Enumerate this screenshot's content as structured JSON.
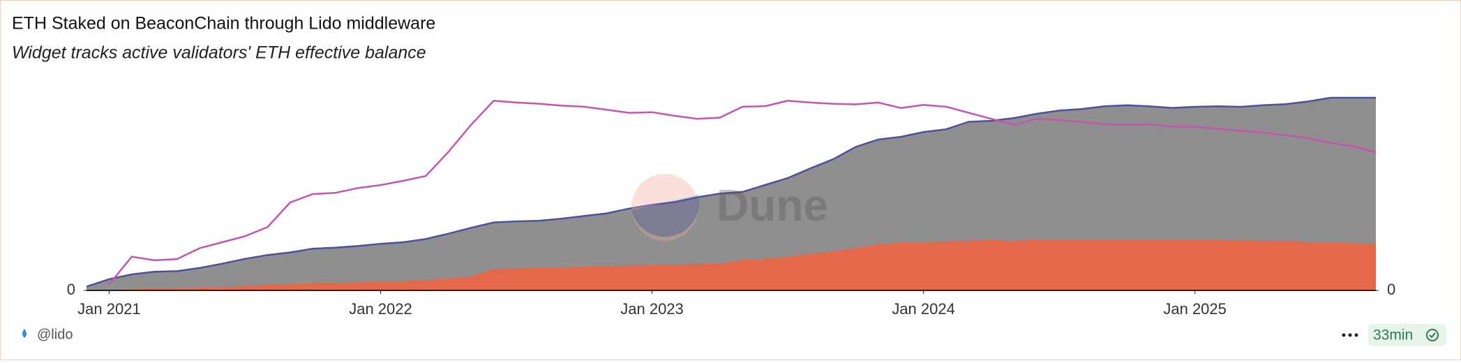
{
  "chart_data": {
    "type": "area",
    "title": "ETH Staked on BeaconChain through Lido middleware",
    "subtitle": "Widget tracks active validators' ETH effective balance",
    "x": [
      "2020-12",
      "2021-01",
      "2021-02",
      "2021-03",
      "2021-04",
      "2021-05",
      "2021-06",
      "2021-07",
      "2021-08",
      "2021-09",
      "2021-10",
      "2021-11",
      "2021-12",
      "2022-01",
      "2022-02",
      "2022-03",
      "2022-04",
      "2022-05",
      "2022-06",
      "2022-07",
      "2022-08",
      "2022-09",
      "2022-10",
      "2022-11",
      "2022-12",
      "2023-01",
      "2023-02",
      "2023-03",
      "2023-04",
      "2023-05",
      "2023-06",
      "2023-07",
      "2023-08",
      "2023-09",
      "2023-10",
      "2023-11",
      "2023-12",
      "2024-01",
      "2024-02",
      "2024-03",
      "2024-04",
      "2024-05",
      "2024-06",
      "2024-07",
      "2024-08",
      "2024-09",
      "2024-10",
      "2024-11",
      "2024-12",
      "2025-01",
      "2025-02",
      "2025-03",
      "2025-04",
      "2025-05",
      "2025-06",
      "2025-07",
      "2025-08",
      "2025-09"
    ],
    "xlim": [
      "2020-12",
      "2025-09"
    ],
    "xticks": [
      {
        "value": "2021-01",
        "label": "Jan 2021"
      },
      {
        "value": "2022-01",
        "label": "Jan 2022"
      },
      {
        "value": "2023-01",
        "label": "Jan 2023"
      },
      {
        "value": "2024-01",
        "label": "Jan 2024"
      },
      {
        "value": "2025-01",
        "label": "Jan 2025"
      }
    ],
    "ylim": [
      0,
      36000000
    ],
    "yticks": [
      0
    ],
    "y2lim": [
      0,
      32
    ],
    "y2ticks": [
      0
    ],
    "series": [
      {
        "kind": "area",
        "color": "#8f8f8f",
        "line_color": "#4e509c",
        "values": [
          700000,
          2100000,
          3000000,
          3500000,
          3600000,
          4200000,
          5000000,
          5900000,
          6600000,
          7100000,
          7800000,
          8000000,
          8300000,
          8700000,
          9000000,
          9600000,
          10600000,
          11700000,
          12700000,
          12900000,
          13000000,
          13400000,
          13900000,
          14400000,
          15300000,
          16000000,
          16500000,
          17400000,
          18100000,
          18400000,
          19700000,
          21000000,
          22800000,
          24500000,
          26800000,
          28200000,
          28700000,
          29600000,
          30100000,
          31500000,
          31700000,
          32200000,
          33000000,
          33600000,
          33900000,
          34400000,
          34600000,
          34400000,
          34100000,
          34300000,
          34400000,
          34300000,
          34600000,
          34800000,
          35300000,
          36000000,
          36000000,
          36000000
        ]
      },
      {
        "kind": "area",
        "color": "#e4694a",
        "values": [
          0,
          100000,
          200000,
          300000,
          400000,
          500000,
          600000,
          800000,
          1000000,
          1200000,
          1300000,
          1400000,
          1500000,
          1600000,
          1700000,
          1900000,
          2200000,
          2600000,
          4000000,
          4100000,
          4200000,
          4300000,
          4400000,
          4500000,
          4600000,
          4700000,
          4800000,
          4900000,
          5000000,
          5700000,
          5900000,
          6300000,
          6800000,
          7300000,
          7900000,
          8600000,
          8900000,
          9000000,
          9100000,
          9300000,
          9400000,
          9200000,
          9500000,
          9400000,
          9500000,
          9500000,
          9500000,
          9500000,
          9500000,
          9500000,
          9400000,
          9300000,
          9300000,
          9200000,
          9000000,
          9000000,
          8800000,
          8700000
        ]
      },
      {
        "kind": "line",
        "axis": "y2",
        "color": "#c354b0",
        "values": [
          null,
          1.0,
          5.6,
          5.0,
          5.2,
          7.0,
          8.0,
          9.0,
          10.5,
          14.6,
          16.0,
          16.2,
          17.0,
          17.5,
          18.2,
          19.0,
          23.0,
          27.5,
          31.5,
          31.2,
          31.0,
          30.7,
          30.5,
          30.0,
          29.5,
          29.6,
          29.0,
          28.5,
          28.7,
          30.5,
          30.6,
          31.5,
          31.2,
          31.0,
          30.9,
          31.2,
          30.3,
          30.8,
          30.5,
          29.5,
          28.5,
          27.5,
          28.5,
          28.3,
          28.0,
          27.6,
          27.5,
          27.6,
          27.2,
          27.2,
          26.8,
          26.5,
          26.2,
          25.8,
          25.3,
          24.5,
          23.9,
          22.9
        ]
      }
    ],
    "watermark": "Dune"
  },
  "footer": {
    "author": "@lido",
    "age": "33min"
  }
}
